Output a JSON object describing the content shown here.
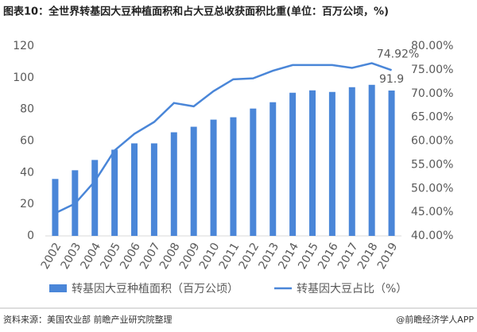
{
  "chart_data": {
    "type": "bar-line",
    "title": "图表10：全世界转基因大豆种植面积和占大豆总收获面积比重(单位：百万公顷，%)",
    "categories": [
      "2002",
      "2003",
      "2004",
      "2005",
      "2006",
      "2007",
      "2008",
      "2009",
      "2010",
      "2011",
      "2012",
      "2013",
      "2014",
      "2015",
      "2016",
      "2017",
      "2018",
      "2019"
    ],
    "series": [
      {
        "name": "转基因大豆种植面积（百万公顷）",
        "type": "bar",
        "color": "#4a86d8",
        "values": [
          36,
          41.5,
          48,
          54.5,
          58.5,
          58.5,
          65.5,
          69,
          73.5,
          75,
          80.5,
          84.5,
          90.5,
          92,
          91,
          94,
          95.5,
          91.9
        ],
        "value_labels": [
          null,
          null,
          null,
          null,
          null,
          null,
          null,
          null,
          null,
          null,
          null,
          null,
          null,
          null,
          null,
          null,
          null,
          "91.9"
        ]
      },
      {
        "name": "转基因大豆占比（%）",
        "type": "line",
        "axis": "y2",
        "color": "#4a86d8",
        "values": [
          44.8,
          46.8,
          51.5,
          58,
          61.5,
          64,
          68,
          67.3,
          70.5,
          73,
          73.2,
          74.8,
          76,
          76,
          76,
          75.4,
          76.4,
          74.92
        ],
        "value_labels": [
          null,
          null,
          null,
          null,
          null,
          null,
          null,
          null,
          null,
          null,
          null,
          null,
          null,
          null,
          null,
          null,
          null,
          "74.92%"
        ]
      }
    ],
    "ylim": [
      0,
      120
    ],
    "yticks": [
      0,
      20,
      40,
      60,
      80,
      100,
      120
    ],
    "y2lim": [
      40,
      80
    ],
    "y2ticks": [
      {
        "value": 40,
        "label": "40.00%"
      },
      {
        "value": 45,
        "label": "45.00%"
      },
      {
        "value": 50,
        "label": "50.00%"
      },
      {
        "value": 55,
        "label": "55.00%"
      },
      {
        "value": 60,
        "label": "60.00%"
      },
      {
        "value": 65,
        "label": "65.00%"
      },
      {
        "value": 70,
        "label": "70.00%"
      },
      {
        "value": 75,
        "label": "75.00%"
      },
      {
        "value": 80,
        "label": "80.00%"
      }
    ],
    "grid": false,
    "source": "资料来源：美国农业部 前瞻产业研究院整理",
    "brand": "@前瞻经济学人APP"
  }
}
